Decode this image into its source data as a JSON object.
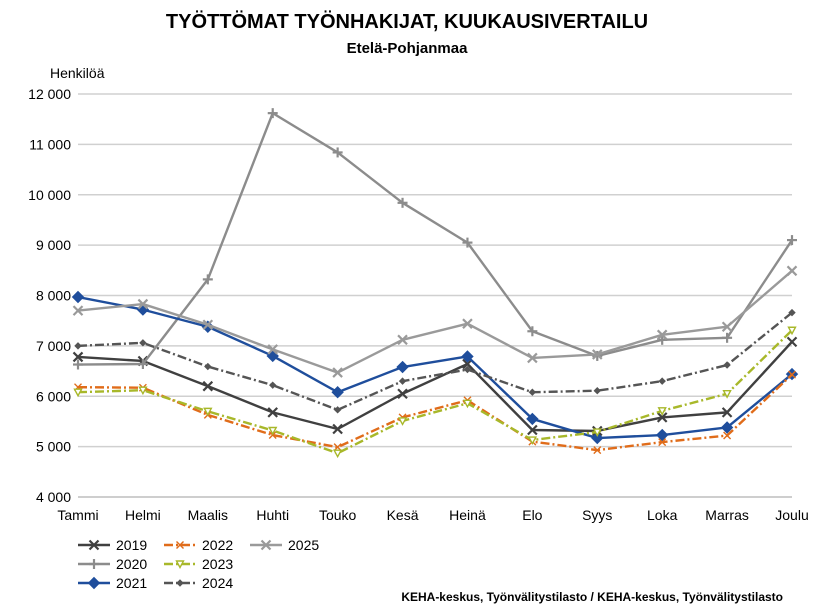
{
  "chart_data": {
    "type": "line",
    "title": "TYÖTTÖMAT TYÖNHAKIJAT, KUUKAUSIVERTAILU",
    "subtitle": "Etelä-Pohjanmaa",
    "ylabel": "Henkilöä",
    "xlabel": "",
    "ylim": [
      4000,
      12000
    ],
    "yticks": [
      4000,
      5000,
      6000,
      7000,
      8000,
      9000,
      10000,
      11000,
      12000
    ],
    "ytick_labels": [
      "4 000",
      "5 000",
      "6 000",
      "7 000",
      "8 000",
      "9 000",
      "10 000",
      "11 000",
      "12 000"
    ],
    "grid": true,
    "categories": [
      "Tammi",
      "Helmi",
      "Maalis",
      "Huhti",
      "Touko",
      "Kesä",
      "Heinä",
      "Elo",
      "Syys",
      "Loka",
      "Marras",
      "Joulu"
    ],
    "series": [
      {
        "name": "2019",
        "color": "#404040",
        "dash": "solid",
        "marker": "x",
        "values": [
          6780,
          6700,
          6200,
          5680,
          5350,
          6050,
          6640,
          5330,
          5310,
          5580,
          5680,
          7080
        ]
      },
      {
        "name": "2020",
        "color": "#8c8c8c",
        "dash": "solid",
        "marker": "plus",
        "values": [
          6630,
          6640,
          8320,
          11620,
          10840,
          9840,
          9050,
          7290,
          6800,
          7120,
          7160,
          9100
        ]
      },
      {
        "name": "2021",
        "color": "#1f4e9c",
        "dash": "solid",
        "marker": "diamond",
        "values": [
          7970,
          7720,
          7380,
          6800,
          6080,
          6580,
          6790,
          5550,
          5170,
          5230,
          5380,
          6440
        ]
      },
      {
        "name": "2022",
        "color": "#e06c1a",
        "dash": "dashdot",
        "marker": "cross",
        "values": [
          6180,
          6170,
          5630,
          5230,
          4990,
          5580,
          5920,
          5100,
          4930,
          5090,
          5220,
          6430
        ]
      },
      {
        "name": "2023",
        "color": "#a8b82a",
        "dash": "dashdot",
        "marker": "triangle",
        "values": [
          6080,
          6120,
          5700,
          5320,
          4870,
          5510,
          5860,
          5130,
          5290,
          5710,
          6050,
          7310
        ]
      },
      {
        "name": "2024",
        "color": "#555555",
        "dash": "dashdot",
        "marker": "dot",
        "values": [
          7000,
          7060,
          6590,
          6220,
          5730,
          6300,
          6530,
          6080,
          6110,
          6300,
          6620,
          7660
        ]
      },
      {
        "name": "2025",
        "color": "#9a9a9a",
        "dash": "solid",
        "marker": "x",
        "values": [
          7700,
          7830,
          7420,
          6930,
          6470,
          7120,
          7440,
          6760,
          6830,
          7220,
          7380,
          8490
        ]
      }
    ],
    "legend_position": "bottom-left"
  },
  "source_text": "KEHA-keskus, Työnvälitystilasto / KEHA-keskus, Työnvälitystilasto"
}
